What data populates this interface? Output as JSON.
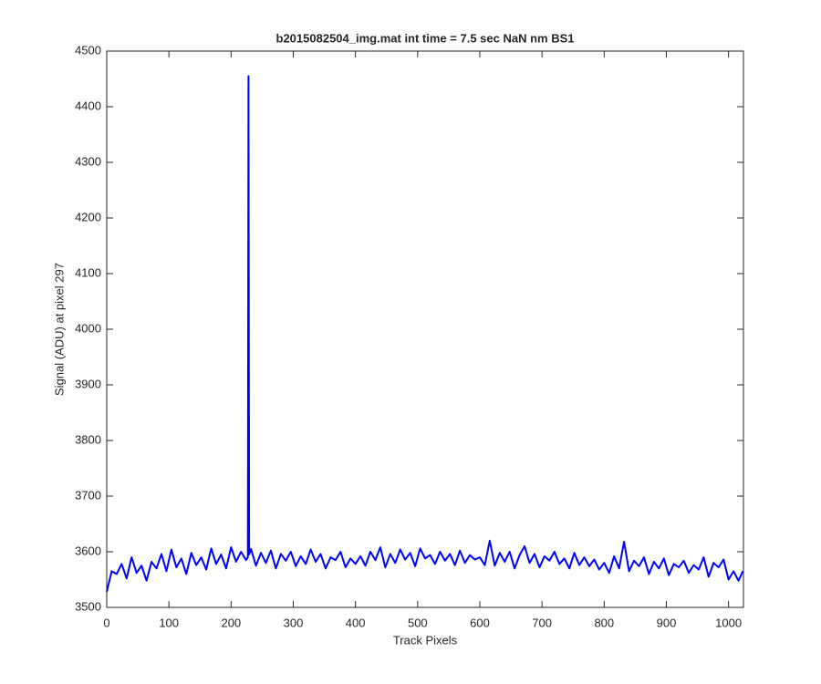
{
  "chart_data": {
    "type": "line",
    "title": "b2015082504_img.mat int time = 7.5 sec  NaN nm BS1",
    "xlabel": "Track Pixels",
    "ylabel": "Signal (ADU) at pixel 297",
    "xlim": [
      0,
      1024
    ],
    "ylim": [
      3500,
      4500
    ],
    "xticks": [
      0,
      100,
      200,
      300,
      400,
      500,
      600,
      700,
      800,
      900,
      1000
    ],
    "yticks": [
      3500,
      3600,
      3700,
      3800,
      3900,
      4000,
      4100,
      4200,
      4300,
      4400,
      4500
    ],
    "grid": false,
    "x": [
      0,
      8,
      16,
      24,
      32,
      40,
      48,
      56,
      64,
      72,
      80,
      88,
      96,
      104,
      112,
      120,
      128,
      136,
      144,
      152,
      160,
      168,
      176,
      184,
      192,
      200,
      208,
      216,
      224,
      227,
      228,
      229,
      232,
      240,
      248,
      256,
      264,
      272,
      280,
      288,
      296,
      304,
      312,
      320,
      328,
      336,
      344,
      352,
      360,
      368,
      376,
      384,
      392,
      400,
      408,
      416,
      424,
      432,
      440,
      448,
      456,
      464,
      472,
      480,
      488,
      496,
      504,
      512,
      520,
      528,
      536,
      544,
      552,
      560,
      568,
      576,
      584,
      592,
      600,
      608,
      616,
      624,
      632,
      640,
      648,
      656,
      664,
      672,
      680,
      688,
      696,
      704,
      712,
      720,
      728,
      736,
      744,
      752,
      760,
      768,
      776,
      784,
      792,
      800,
      808,
      816,
      824,
      832,
      840,
      848,
      856,
      864,
      872,
      880,
      888,
      896,
      904,
      912,
      920,
      928,
      936,
      944,
      952,
      960,
      968,
      976,
      984,
      992,
      1000,
      1008,
      1016,
      1023
    ],
    "series": [
      {
        "color": "#0000ff",
        "values": [
          3528,
          3565,
          3560,
          3578,
          3552,
          3590,
          3562,
          3575,
          3548,
          3582,
          3570,
          3596,
          3565,
          3604,
          3572,
          3588,
          3560,
          3598,
          3576,
          3590,
          3568,
          3606,
          3578,
          3595,
          3570,
          3608,
          3582,
          3600,
          3585,
          3590,
          4455,
          3595,
          3605,
          3575,
          3598,
          3580,
          3602,
          3570,
          3596,
          3584,
          3600,
          3574,
          3592,
          3578,
          3604,
          3582,
          3596,
          3570,
          3590,
          3585,
          3600,
          3572,
          3588,
          3578,
          3592,
          3575,
          3600,
          3585,
          3608,
          3572,
          3596,
          3580,
          3604,
          3586,
          3598,
          3574,
          3606,
          3588,
          3594,
          3578,
          3600,
          3584,
          3596,
          3576,
          3602,
          3580,
          3594,
          3586,
          3590,
          3576,
          3620,
          3575,
          3598,
          3582,
          3600,
          3570,
          3594,
          3610,
          3580,
          3596,
          3572,
          3592,
          3584,
          3600,
          3578,
          3588,
          3570,
          3598,
          3576,
          3590,
          3574,
          3586,
          3568,
          3580,
          3562,
          3592,
          3570,
          3618,
          3565,
          3584,
          3574,
          3590,
          3560,
          3582,
          3570,
          3588,
          3558,
          3578,
          3572,
          3584,
          3562,
          3576,
          3568,
          3590,
          3555,
          3580,
          3572,
          3586,
          3550,
          3565,
          3548,
          3565
        ]
      }
    ]
  }
}
